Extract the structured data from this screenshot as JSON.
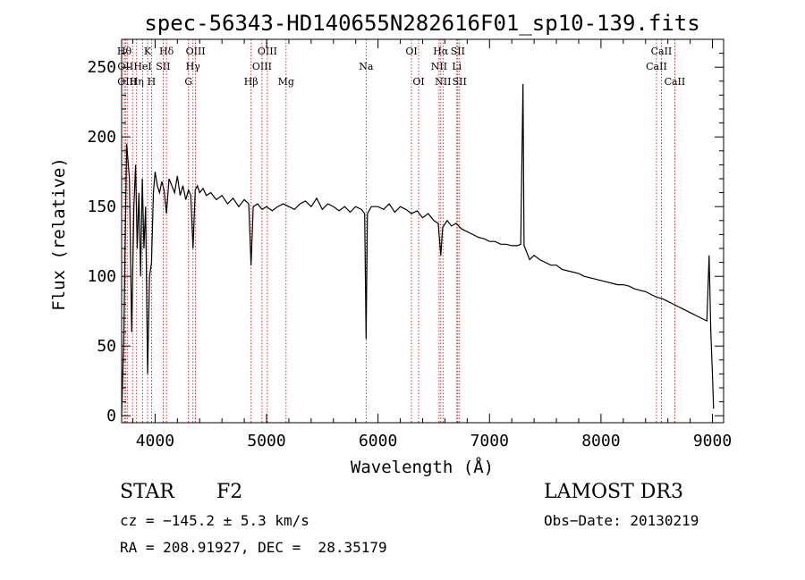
{
  "chart_data": {
    "type": "line",
    "title": "spec-56343-HD140655N282616F01_sp10-139.fits",
    "xlabel": "Wavelength (Å)",
    "ylabel": "Flux (relative)",
    "xlim": [
      3700,
      9100
    ],
    "ylim": [
      -5,
      270
    ],
    "xticks": [
      4000,
      5000,
      6000,
      7000,
      8000,
      9000
    ],
    "yticks": [
      0,
      50,
      100,
      150,
      200,
      250
    ],
    "grid": false,
    "series": [
      {
        "x": [
          3700,
          3720,
          3745,
          3770,
          3790,
          3810,
          3825,
          3840,
          3855,
          3870,
          3885,
          3900,
          3915,
          3933,
          3950,
          3968,
          3985,
          4000,
          4020,
          4040,
          4060,
          4080,
          4102,
          4125,
          4150,
          4175,
          4200,
          4225,
          4250,
          4275,
          4300,
          4320,
          4340,
          4360,
          4380,
          4400,
          4430,
          4460,
          4500,
          4550,
          4600,
          4650,
          4700,
          4750,
          4800,
          4840,
          4861,
          4880,
          4920,
          4960,
          5000,
          5050,
          5100,
          5150,
          5200,
          5250,
          5300,
          5350,
          5400,
          5450,
          5500,
          5550,
          5600,
          5650,
          5700,
          5750,
          5800,
          5850,
          5880,
          5893,
          5905,
          5940,
          6000,
          6050,
          6100,
          6150,
          6200,
          6250,
          6300,
          6350,
          6400,
          6450,
          6500,
          6540,
          6563,
          6580,
          6620,
          6660,
          6700,
          6750,
          6800,
          6850,
          6900,
          6950,
          7000,
          7050,
          7100,
          7150,
          7200,
          7250,
          7280,
          7300,
          7310,
          7330,
          7360,
          7400,
          7450,
          7500,
          7550,
          7600,
          7650,
          7700,
          7750,
          7800,
          7850,
          7900,
          7950,
          8000,
          8050,
          8100,
          8150,
          8200,
          8250,
          8300,
          8350,
          8400,
          8450,
          8500,
          8550,
          8600,
          8650,
          8700,
          8750,
          8800,
          8850,
          8900,
          8950,
          8970,
          8985,
          9000,
          9010
        ],
        "y": [
          0,
          60,
          195,
          170,
          60,
          150,
          180,
          120,
          160,
          100,
          170,
          120,
          150,
          30,
          100,
          110,
          160,
          175,
          165,
          160,
          168,
          162,
          145,
          170,
          165,
          160,
          172,
          158,
          165,
          155,
          162,
          158,
          120,
          162,
          165,
          160,
          163,
          158,
          160,
          155,
          158,
          152,
          156,
          150,
          155,
          152,
          108,
          150,
          152,
          148,
          150,
          147,
          150,
          152,
          150,
          148,
          152,
          154,
          150,
          156,
          148,
          152,
          150,
          147,
          150,
          146,
          150,
          148,
          145,
          55,
          145,
          150,
          150,
          148,
          152,
          146,
          150,
          148,
          145,
          147,
          142,
          145,
          140,
          138,
          115,
          135,
          140,
          136,
          138,
          134,
          132,
          130,
          128,
          127,
          125,
          125,
          123,
          123,
          122,
          122,
          123,
          238,
          122,
          118,
          112,
          115,
          112,
          110,
          108,
          108,
          105,
          104,
          103,
          102,
          100,
          99,
          98,
          97,
          96,
          95,
          94,
          94,
          93,
          91,
          90,
          89,
          87,
          85,
          84,
          82,
          80,
          78,
          76,
          74,
          72,
          70,
          68,
          115,
          60,
          30,
          5
        ]
      }
    ],
    "lines": [
      {
        "x": 3724,
        "label": "Hθ",
        "row": 1
      },
      {
        "x": 3734,
        "label": "OII",
        "row": 2
      },
      {
        "x": 3750,
        "label": "OIII",
        "row": 3
      },
      {
        "x": 3798,
        "label": "",
        "row": 0
      },
      {
        "x": 3835,
        "label": "Hη",
        "row": 3
      },
      {
        "x": 3889,
        "label": "HeI",
        "row": 2
      },
      {
        "x": 3933,
        "label": "K",
        "row": 1
      },
      {
        "x": 3968,
        "label": "H",
        "row": 3
      },
      {
        "x": 4072,
        "label": "SII",
        "row": 2
      },
      {
        "x": 4102,
        "label": "Hδ",
        "row": 1
      },
      {
        "x": 4300,
        "label": "G",
        "row": 3
      },
      {
        "x": 4340,
        "label": "Hγ",
        "row": 2
      },
      {
        "x": 4363,
        "label": "OIII",
        "row": 1
      },
      {
        "x": 4861,
        "label": "Hβ",
        "row": 3
      },
      {
        "x": 4959,
        "label": "OIII",
        "row": 2
      },
      {
        "x": 5007,
        "label": "OIII",
        "row": 1
      },
      {
        "x": 5175,
        "label": "Mg",
        "row": 3
      },
      {
        "x": 5893,
        "label": "Na",
        "row": 2
      },
      {
        "x": 6300,
        "label": "OI",
        "row": 1
      },
      {
        "x": 6364,
        "label": "OI",
        "row": 3
      },
      {
        "x": 6548,
        "label": "NII",
        "row": 2
      },
      {
        "x": 6563,
        "label": "Hα",
        "row": 1
      },
      {
        "x": 6583,
        "label": "NII",
        "row": 3
      },
      {
        "x": 6707,
        "label": "Li",
        "row": 2
      },
      {
        "x": 6716,
        "label": "SII",
        "row": 1
      },
      {
        "x": 6731,
        "label": "SII",
        "row": 3
      },
      {
        "x": 8498,
        "label": "CaII",
        "row": 2
      },
      {
        "x": 8542,
        "label": "CaII",
        "row": 1
      },
      {
        "x": 8662,
        "label": "CaII",
        "row": 3
      }
    ]
  },
  "info": {
    "object_class": "STAR",
    "subclass": "F2",
    "survey": "LAMOST DR3",
    "redshift": "cz = −145.2 ± 5.3 km/s",
    "obs_date": "Obs−Date: 20130219",
    "coords": "RA = 208.91927, DEC =  28.35179"
  },
  "colors": {
    "axes": "#000000",
    "spectrum": "#000000",
    "line_markers": "#cc0000"
  }
}
